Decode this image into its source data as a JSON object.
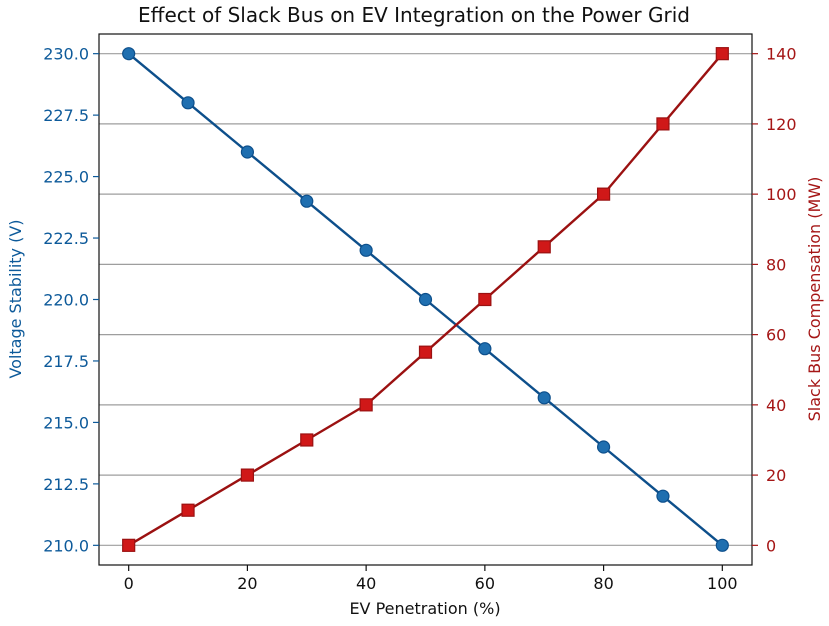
{
  "chart_data": {
    "type": "line",
    "title": "Effect of Slack Bus on EV Integration on the Power Grid",
    "xlabel": "EV Penetration (%)",
    "ylabel_left": "Voltage Stability (V)",
    "ylabel_right": "Slack Bus Compensation (MW)",
    "x": [
      0,
      10,
      20,
      30,
      40,
      50,
      60,
      70,
      80,
      90,
      100
    ],
    "xlim": [
      -5,
      105
    ],
    "xticks": [
      "0",
      "20",
      "40",
      "60",
      "80",
      "100"
    ],
    "ylim_left": [
      209.2,
      230.8
    ],
    "yticks_left": [
      "210.0",
      "212.5",
      "215.0",
      "217.5",
      "220.0",
      "222.5",
      "225.0",
      "227.5",
      "230.0"
    ],
    "ylim_right": [
      -5.6,
      145.6
    ],
    "yticks_right": [
      "0",
      "20",
      "40",
      "60",
      "80",
      "100",
      "120",
      "140"
    ],
    "grid": "horizontal lines at right-axis ticks",
    "series": [
      {
        "name": "",
        "axis": "left",
        "marker": "circle",
        "color": "#0d4f8b",
        "values": [
          230,
          228,
          226,
          224,
          222,
          220,
          218,
          216,
          214,
          212,
          210
        ]
      },
      {
        "name": "",
        "axis": "right",
        "marker": "square",
        "color": "#9b1111",
        "values": [
          0,
          10,
          20,
          30,
          40,
          55,
          70,
          85,
          100,
          120,
          140
        ]
      }
    ],
    "colors": {
      "left_axis": "#0d5a9a",
      "right_axis": "#a51616",
      "grid": "#9e9e9e",
      "marker_fill_left": "#1f6fb0",
      "marker_fill_right": "#d01818"
    }
  }
}
